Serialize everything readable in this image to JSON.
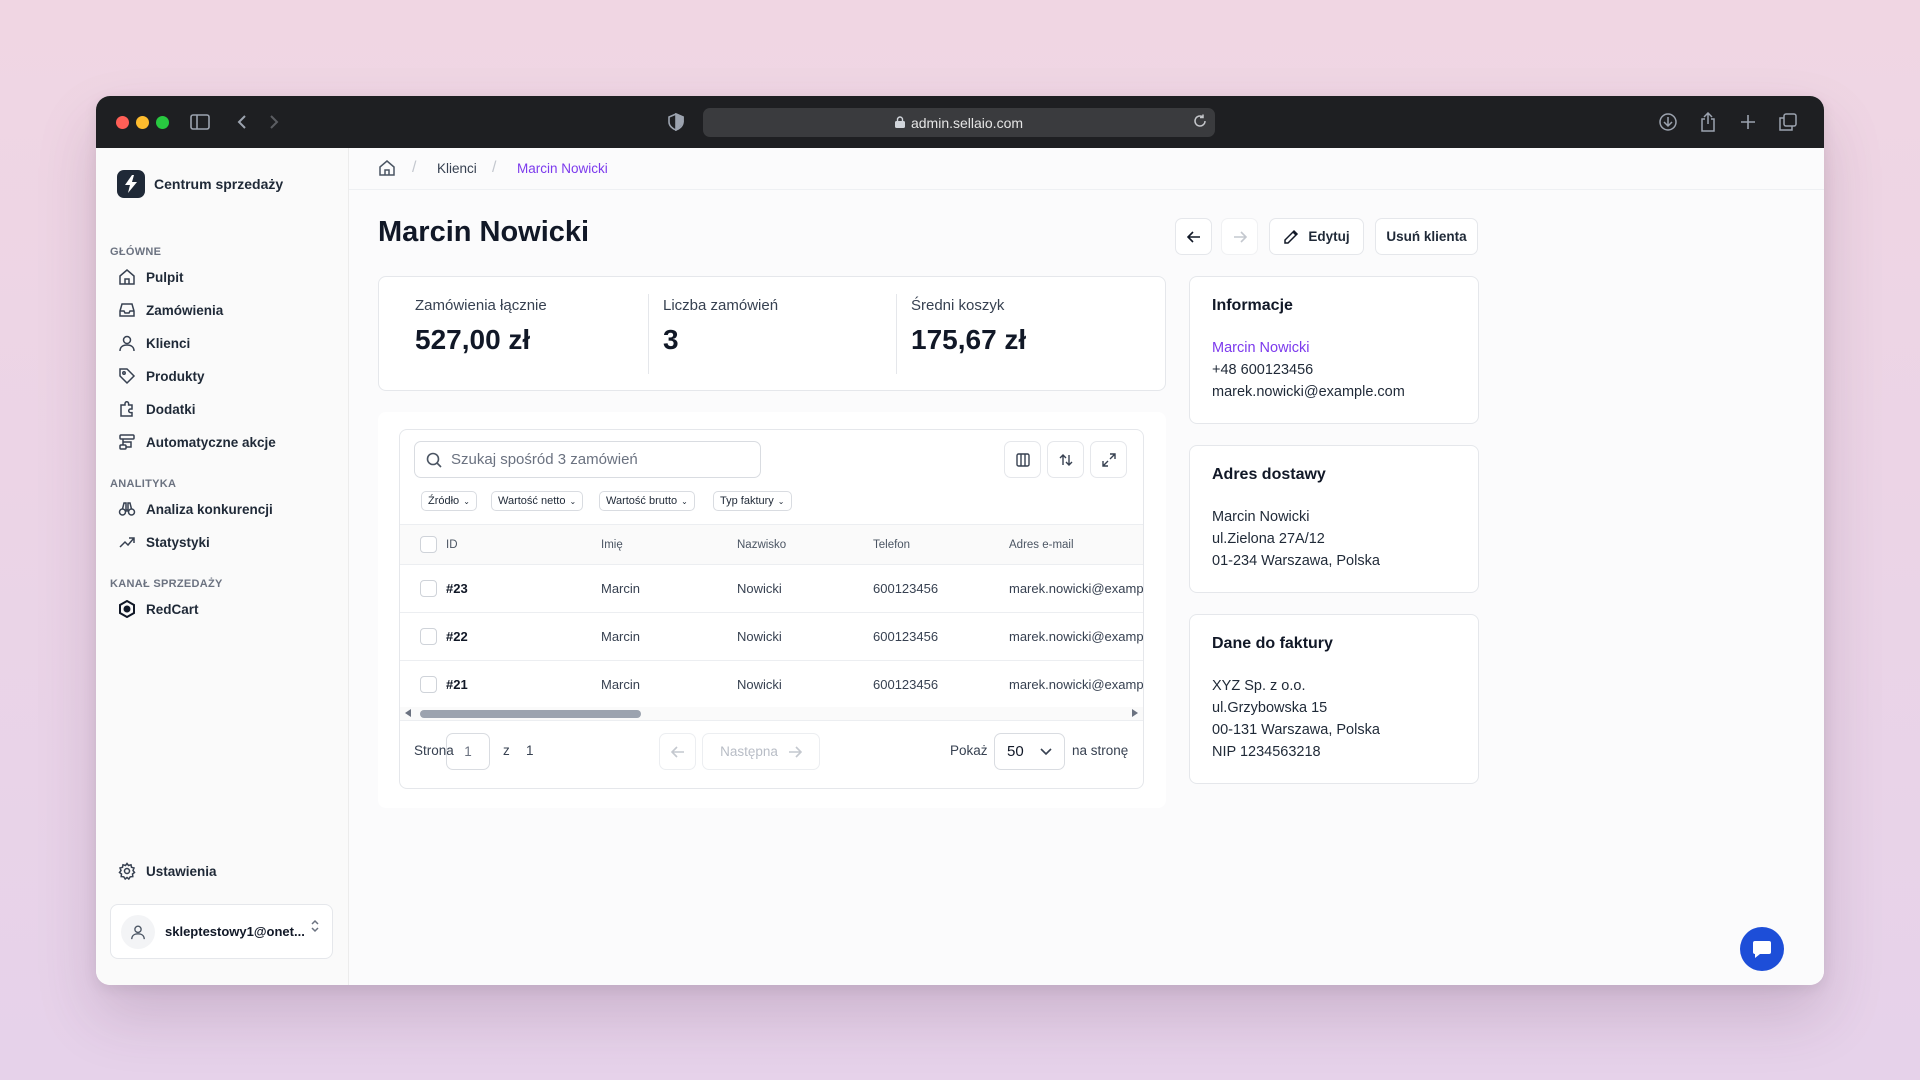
{
  "browser": {
    "url": "admin.sellaio.com"
  },
  "sidebar": {
    "brand": "Centrum sprzedaży",
    "sections": {
      "main": "GŁÓWNE",
      "analytics": "ANALITYKA",
      "channel": "KANAŁ SPRZEDAŻY"
    },
    "items": {
      "pulpit": "Pulpit",
      "zamowienia": "Zamówienia",
      "klienci": "Klienci",
      "produkty": "Produkty",
      "dodatki": "Dodatki",
      "automatyczne": "Automatyczne akcje",
      "analiza": "Analiza konkurencji",
      "statystyki": "Statystyki",
      "redcart": "RedCart",
      "ustawienia": "Ustawienia"
    },
    "user_email": "skleptestowy1@onet..."
  },
  "breadcrumb": {
    "parent": "Klienci",
    "current": "Marcin Nowicki"
  },
  "page": {
    "title": "Marcin Nowicki",
    "edit_label": "Edytuj",
    "delete_label": "Usuń klienta"
  },
  "stats": [
    {
      "label": "Zamówienia łącznie",
      "value": "527,00 zł"
    },
    {
      "label": "Liczba zamówień",
      "value": "3"
    },
    {
      "label": "Średni koszyk",
      "value": "175,67 zł"
    }
  ],
  "orders": {
    "search_placeholder": "Szukaj spośród 3 zamówień",
    "filters": [
      "Źródło",
      "Wartość netto",
      "Wartość brutto",
      "Typ faktury"
    ],
    "columns": [
      "ID",
      "Imię",
      "Nazwisko",
      "Telefon",
      "Adres e-mail"
    ],
    "rows": [
      {
        "id": "#23",
        "first": "Marcin",
        "last": "Nowicki",
        "phone": "600123456",
        "email": "marek.nowicki@example.com"
      },
      {
        "id": "#22",
        "first": "Marcin",
        "last": "Nowicki",
        "phone": "600123456",
        "email": "marek.nowicki@example.com"
      },
      {
        "id": "#21",
        "first": "Marcin",
        "last": "Nowicki",
        "phone": "600123456",
        "email": "marek.nowicki@example.com"
      }
    ],
    "pagination": {
      "page_label": "Strona",
      "page": "1",
      "of_label": "z",
      "total": "1",
      "next_label": "Następna",
      "show_label": "Pokaż",
      "per_page": "50",
      "per_page_suffix": "na stronę"
    }
  },
  "info": {
    "title": "Informacje",
    "name": "Marcin Nowicki",
    "phone": "+48 600123456",
    "email": "marek.nowicki@example.com"
  },
  "shipping": {
    "title": "Adres dostawy",
    "name": "Marcin Nowicki",
    "street": "ul.Zielona 27A/12",
    "city": "01-234 Warszawa, Polska"
  },
  "invoice": {
    "title": "Dane do faktury",
    "company": "XYZ Sp. z o.o.",
    "street": "ul.Grzybowska 15",
    "city": "00-131 Warszawa, Polska",
    "nip": "NIP 1234563218"
  },
  "colors": {
    "accent": "#7c3aed",
    "chat": "#1d4ed8"
  }
}
